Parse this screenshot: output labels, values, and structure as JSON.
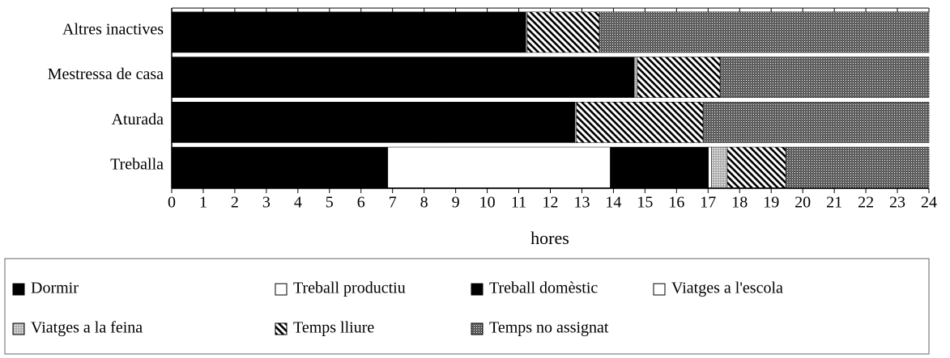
{
  "chart_data": {
    "type": "stacked-bar-horizontal",
    "categories": [
      "Altres inactives",
      "Mestressa de casa",
      "Aturada",
      "Treballa"
    ],
    "series": [
      {
        "name": "Dormir",
        "color": "#000000",
        "pattern": "solid",
        "values": [
          8.4,
          8.6,
          8.5,
          6.85
        ]
      },
      {
        "name": "Treball productiu",
        "color": "#ffffff",
        "pattern": "solid",
        "values": [
          0,
          0,
          0,
          7.05
        ]
      },
      {
        "name": "Treball domèstic",
        "color": "#000000",
        "pattern": "solid",
        "values": [
          2.82,
          6.06,
          4.28,
          3.11
        ]
      },
      {
        "name": "Viatges a l'escola",
        "color": "#ffffff",
        "pattern": "solid",
        "values": [
          0,
          0,
          0,
          0.1
        ]
      },
      {
        "name": "Viatges a la feina",
        "color": "#bbbbbb",
        "pattern": "dots",
        "values": [
          0.05,
          0.1,
          0.05,
          0.5
        ]
      },
      {
        "name": "Temps lliure",
        "color": "#000000",
        "pattern": "hatch",
        "values": [
          2.28,
          2.62,
          4.01,
          1.85
        ]
      },
      {
        "name": "Temps no assignat",
        "color": "#555555",
        "pattern": "dots",
        "values": [
          10.45,
          6.62,
          7.16,
          4.54
        ]
      }
    ],
    "xlabel": "hores",
    "xlim": [
      0,
      24
    ],
    "xticks": [
      0,
      1,
      2,
      3,
      4,
      5,
      6,
      7,
      8,
      9,
      10,
      11,
      12,
      13,
      14,
      15,
      16,
      17,
      18,
      19,
      20,
      21,
      22,
      23,
      24
    ],
    "legend": "bottom"
  }
}
